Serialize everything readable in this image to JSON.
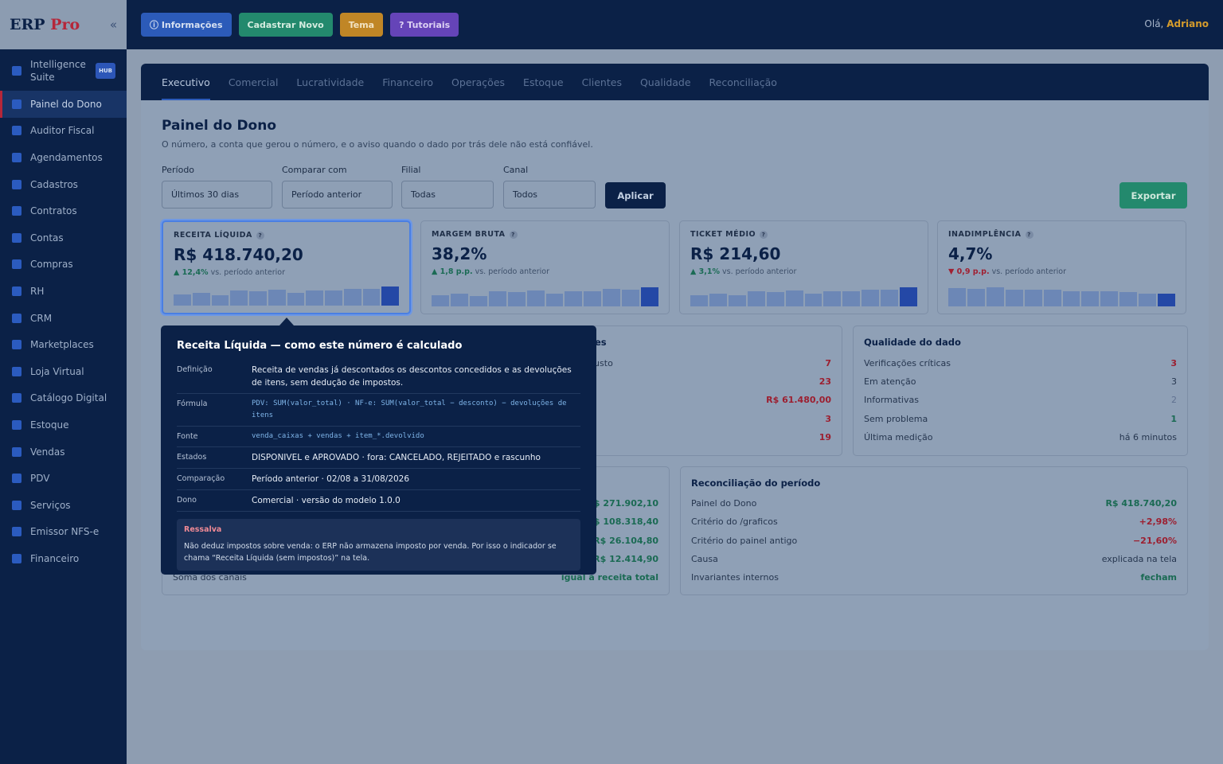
{
  "brand": {
    "name": "ERP",
    "name_accent": "Pro",
    "collapse_glyph": "«"
  },
  "sidebar": {
    "suite": {
      "label": "Intelligence Suite",
      "badge": "HUB"
    },
    "items": [
      {
        "label": "Painel do Dono",
        "active": true
      },
      {
        "label": "Auditor Fiscal"
      },
      {
        "label": "Agendamentos"
      },
      {
        "label": "Cadastros"
      },
      {
        "label": "Contratos"
      },
      {
        "label": "Contas"
      },
      {
        "label": "Compras"
      },
      {
        "label": "RH"
      },
      {
        "label": "CRM"
      },
      {
        "label": "Marketplaces"
      },
      {
        "label": "Loja Virtual"
      },
      {
        "label": "Catálogo Digital"
      },
      {
        "label": "Estoque"
      },
      {
        "label": "Vendas"
      },
      {
        "label": "PDV"
      },
      {
        "label": "Serviços"
      },
      {
        "label": "Emissor NFS-e"
      },
      {
        "label": "Financeiro"
      }
    ]
  },
  "topbar": {
    "info_label": "ⓘ Informações",
    "novo_label": "Cadastrar Novo",
    "tema_label": "Tema",
    "tutoriais_label": "? Tutoriais",
    "greeting": "Olá,",
    "user": "Adriano"
  },
  "tabs": [
    "Executivo",
    "Comercial",
    "Lucratividade",
    "Financeiro",
    "Operações",
    "Estoque",
    "Clientes",
    "Qualidade",
    "Reconciliação"
  ],
  "page": {
    "title": "Painel do Dono",
    "subtitle": "O número, a conta que gerou o número, e o aviso quando o dado por trás dele não está confiável."
  },
  "filters": {
    "periodo": {
      "label": "Período",
      "value": "Últimos 30 dias"
    },
    "comparar": {
      "label": "Comparar com",
      "value": "Período anterior"
    },
    "filial": {
      "label": "Filial",
      "value": "Todas"
    },
    "canal": {
      "label": "Canal",
      "value": "Todos"
    },
    "apply": "Aplicar",
    "export": "Exportar"
  },
  "kpis": [
    {
      "label": "RECEITA LÍQUIDA",
      "value": "R$ 418.740,20",
      "delta": "▲ 12,4%",
      "trend": "up",
      "note": "vs. período anterior",
      "spark": [
        0.52,
        0.62,
        0.5,
        0.72,
        0.68,
        0.78,
        0.6,
        0.72,
        0.72,
        0.82,
        0.8,
        0.92
      ]
    },
    {
      "label": "MARGEM BRUTA",
      "value": "38,2%",
      "delta": "▲ 1,8 p.p.",
      "trend": "up",
      "note": "vs. período anterior",
      "spark": [
        0.55,
        0.62,
        0.5,
        0.72,
        0.68,
        0.78,
        0.6,
        0.72,
        0.72,
        0.86,
        0.8,
        0.92
      ]
    },
    {
      "label": "TICKET MÉDIO",
      "value": "R$ 214,60",
      "delta": "▲ 3,1%",
      "trend": "up",
      "note": "vs. período anterior",
      "spark": [
        0.55,
        0.62,
        0.55,
        0.72,
        0.68,
        0.78,
        0.6,
        0.72,
        0.72,
        0.82,
        0.8,
        0.92
      ]
    },
    {
      "label": "INADIMPLÊNCIA",
      "value": "4,7%",
      "delta": "▼ 0,9 p.p.",
      "trend": "down",
      "note": "vs. período anterior",
      "spark": [
        0.88,
        0.85,
        0.92,
        0.8,
        0.8,
        0.8,
        0.72,
        0.72,
        0.72,
        0.68,
        0.62,
        0.62
      ]
    }
  ],
  "alerts_panel": {
    "title_fragment": "es",
    "label_fragment": "custo",
    "values": [
      {
        "v": "7",
        "c": "red"
      },
      {
        "v": "23",
        "c": "red"
      },
      {
        "v": "R$ 61.480,00",
        "c": "red"
      },
      {
        "v": "3",
        "c": "red"
      },
      {
        "v": "19",
        "c": "red"
      }
    ]
  },
  "quality": {
    "title": "Qualidade do dado",
    "rows": [
      {
        "label": "Verificações críticas",
        "value": "3",
        "c": "red"
      },
      {
        "label": "Em atenção",
        "value": "3",
        "c": "plain"
      },
      {
        "label": "Informativas",
        "value": "2",
        "c": "muted"
      },
      {
        "label": "Sem problema",
        "value": "1",
        "c": "green"
      },
      {
        "label": "Última medição",
        "value": "há 6 minutos",
        "c": "plain"
      }
    ]
  },
  "channels": {
    "values": [
      "R$ 271.902,10",
      "R$ 108.318,40",
      "R$ 26.104,80",
      "R$ 12.414,90"
    ],
    "sum_label": "Soma dos canais",
    "sum_value": "igual à receita total"
  },
  "reconciliation": {
    "title": "Reconciliação do período",
    "rows": [
      {
        "label": "Painel do Dono",
        "value": "R$ 418.740,20",
        "c": "green"
      },
      {
        "label": "Critério do /graficos",
        "value": "+2,98%",
        "c": "red"
      },
      {
        "label": "Critério do painel antigo",
        "value": "−21,60%",
        "c": "red"
      },
      {
        "label": "Causa",
        "value": "explicada na tela",
        "c": "plain"
      },
      {
        "label": "Invariantes internos",
        "value": "fecham",
        "c": "green"
      }
    ]
  },
  "tooltip": {
    "title": "Receita Líquida — como este número é calculado",
    "rows": [
      {
        "key": "Definição",
        "value": "Receita de vendas já descontados os descontos concedidos e as devoluções de itens, sem dedução de impostos.",
        "mono": false
      },
      {
        "key": "Fórmula",
        "value": "PDV: SUM(valor_total) · NF-e: SUM(valor_total − desconto) − devoluções de itens",
        "mono": true
      },
      {
        "key": "Fonte",
        "value": "venda_caixas + vendas + item_*.devolvido",
        "mono": true
      },
      {
        "key": "Estados",
        "value": "DISPONIVEL e APROVADO · fora: CANCELADO, REJEITADO e rascunho",
        "mono": false
      },
      {
        "key": "Comparação",
        "value": "Período anterior · 02/08 a 31/08/2026",
        "mono": false
      },
      {
        "key": "Dono",
        "value": "Comercial · versão do modelo 1.0.0",
        "mono": false
      }
    ],
    "caveat_title": "Ressalva",
    "caveat_text": "Não deduz impostos sobre venda: o ERP não armazena imposto por venda. Por isso o indicador se chama “Receita Líquida (sem impostos)” na tela."
  },
  "colors": {
    "navy": "#0b2147",
    "accent_red": "#b5273a",
    "accent_blue": "#2c5bb9",
    "green": "#23896d",
    "amber": "#c08626",
    "purple": "#6544b8"
  }
}
